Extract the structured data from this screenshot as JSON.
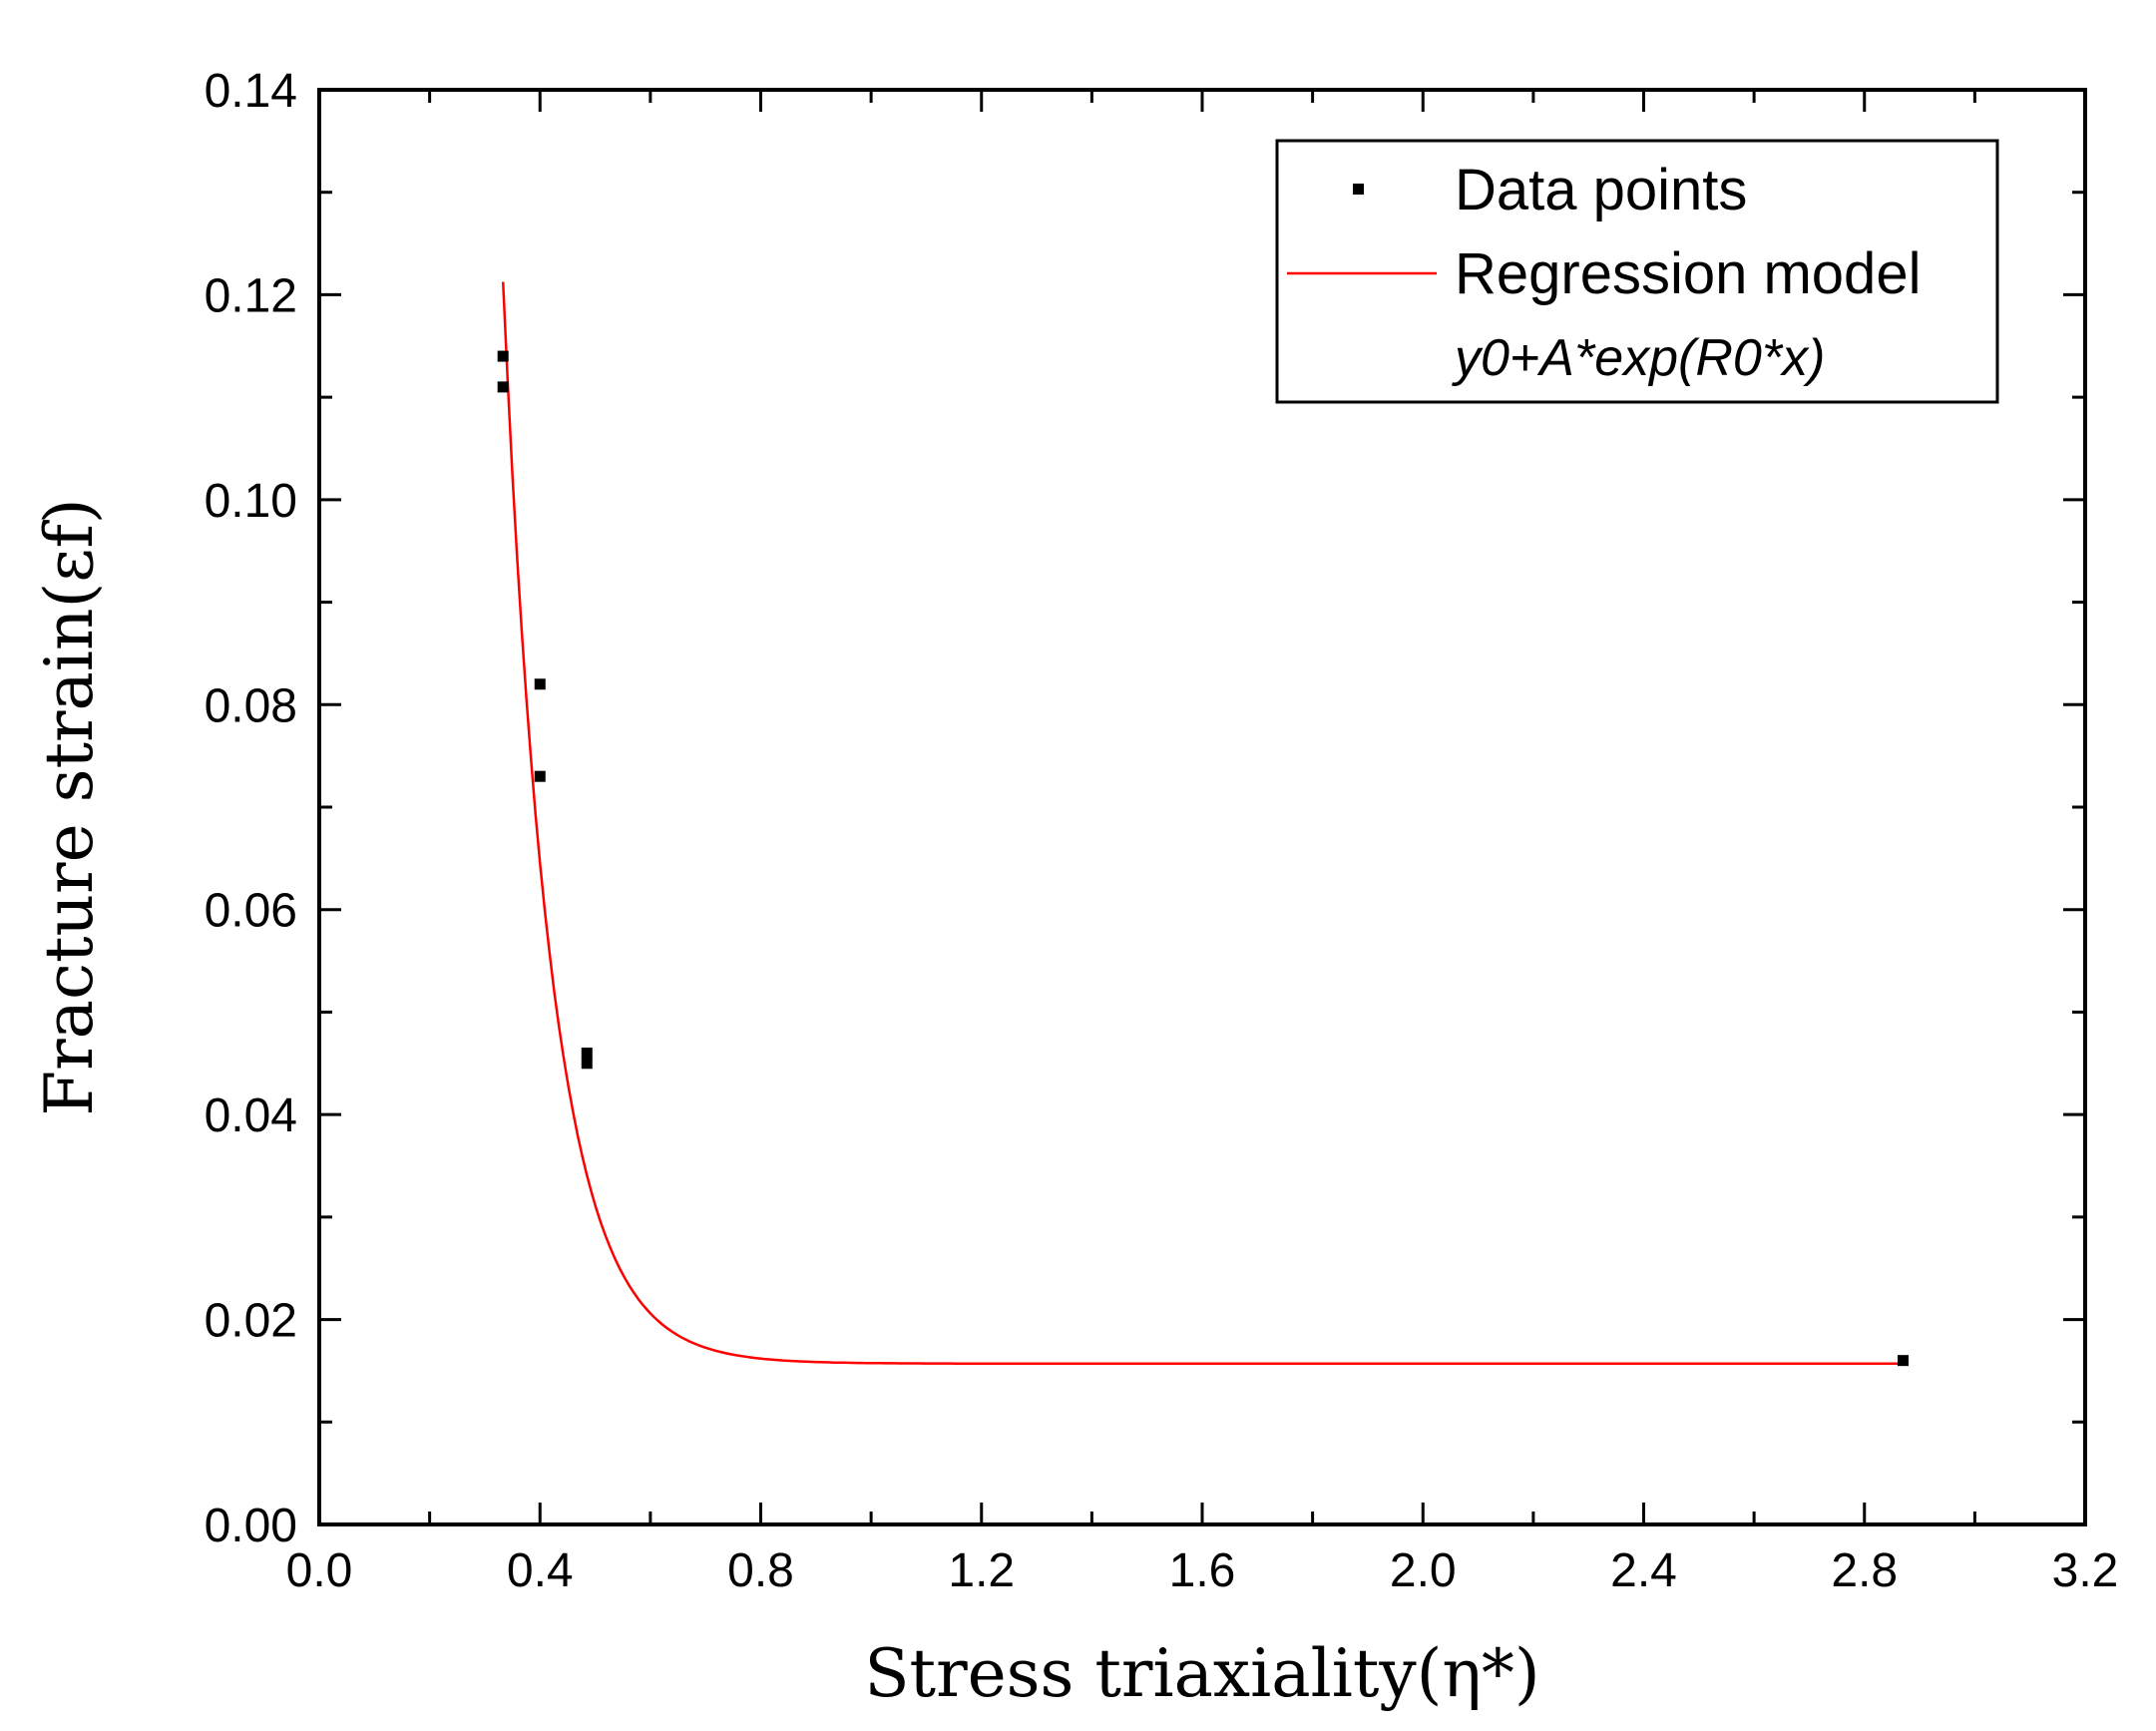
{
  "chart_data": {
    "type": "scatter",
    "title": "",
    "xlabel": "Stress triaxiality(η*)",
    "ylabel": "Fracture strain(εf)",
    "xlim": [
      0.0,
      3.2
    ],
    "ylim": [
      0.0,
      0.14
    ],
    "x_ticks": [
      "0.0",
      "0.4",
      "0.8",
      "1.2",
      "1.6",
      "2.0",
      "2.4",
      "2.8",
      "3.2"
    ],
    "y_ticks": [
      "0.00",
      "0.02",
      "0.04",
      "0.06",
      "0.08",
      "0.10",
      "0.12",
      "0.14"
    ],
    "grid": false,
    "legend_position": "top-right",
    "series": [
      {
        "name": "Data points",
        "kind": "scatter",
        "color": "#000000",
        "x": [
          0.333,
          0.333,
          0.4,
          0.4,
          0.485,
          0.485,
          2.87
        ],
        "y": [
          0.114,
          0.111,
          0.082,
          0.073,
          0.046,
          0.045,
          0.016
        ]
      },
      {
        "name": "Regression model",
        "kind": "line",
        "color": "#ff0000",
        "formula": "y0+A*exp(R0*x)",
        "model": {
          "y0": 0.0157,
          "A": 4.86,
          "R0": -11.5
        },
        "x_range": [
          0.333,
          2.87
        ]
      }
    ]
  }
}
